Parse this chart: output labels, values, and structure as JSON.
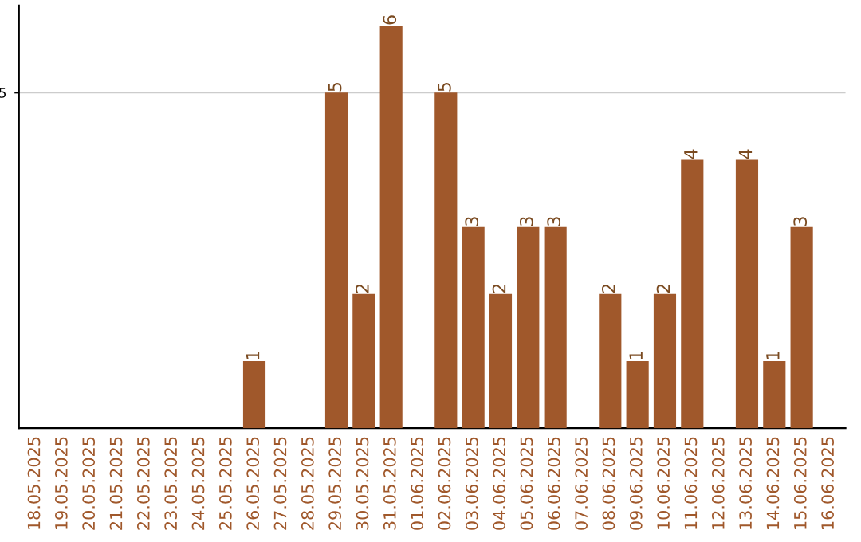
{
  "chart_data": {
    "type": "bar",
    "categories": [
      "18.05.2025",
      "19.05.2025",
      "20.05.2025",
      "21.05.2025",
      "22.05.2025",
      "23.05.2025",
      "24.05.2025",
      "25.05.2025",
      "26.05.2025",
      "27.05.2025",
      "28.05.2025",
      "29.05.2025",
      "30.05.2025",
      "31.05.2025",
      "01.06.2025",
      "02.06.2025",
      "03.06.2025",
      "04.06.2025",
      "05.06.2025",
      "06.06.2025",
      "07.06.2025",
      "08.06.2025",
      "09.06.2025",
      "10.06.2025",
      "11.06.2025",
      "12.06.2025",
      "13.06.2025",
      "14.06.2025",
      "15.06.2025",
      "16.06.2025"
    ],
    "values": [
      0,
      0,
      0,
      0,
      0,
      0,
      0,
      0,
      1,
      0,
      0,
      5,
      2,
      6,
      0,
      5,
      3,
      2,
      3,
      3,
      0,
      2,
      1,
      2,
      4,
      0,
      4,
      1,
      3,
      0
    ],
    "value_labels": [
      null,
      null,
      null,
      null,
      null,
      null,
      null,
      null,
      "1",
      null,
      null,
      "5",
      "2",
      "6",
      null,
      "5",
      "3",
      "2",
      "3",
      "3",
      null,
      "2",
      "1",
      "2",
      "4",
      null,
      "4",
      "1",
      "3",
      null
    ],
    "color": "#a0582b",
    "ylim": [
      0,
      6.3
    ],
    "yticks": [
      5
    ],
    "grid": "y"
  }
}
